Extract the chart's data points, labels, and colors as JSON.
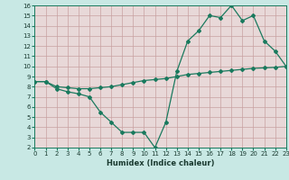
{
  "line1_x": [
    0,
    1,
    2,
    3,
    4,
    5,
    6,
    7,
    8,
    9,
    10,
    11,
    12,
    13,
    14,
    15,
    16,
    17,
    18,
    19,
    20,
    21,
    22,
    23
  ],
  "line1_y": [
    8.5,
    8.5,
    7.8,
    7.5,
    7.3,
    7.0,
    5.5,
    4.5,
    3.5,
    3.5,
    3.5,
    2.0,
    4.5,
    9.5,
    12.5,
    13.5,
    15.0,
    14.8,
    16.0,
    14.5,
    15.0,
    12.5,
    11.5,
    10.0
  ],
  "line2_x": [
    0,
    1,
    2,
    3,
    4,
    5,
    6,
    7,
    8,
    9,
    10,
    11,
    12,
    13,
    14,
    15,
    16,
    17,
    18,
    19,
    20,
    21,
    22,
    23
  ],
  "line2_y": [
    8.5,
    8.5,
    8.0,
    7.9,
    7.8,
    7.8,
    7.9,
    8.0,
    8.2,
    8.4,
    8.6,
    8.7,
    8.8,
    9.0,
    9.2,
    9.3,
    9.4,
    9.5,
    9.6,
    9.7,
    9.8,
    9.85,
    9.9,
    10.0
  ],
  "line_color": "#1a7a5e",
  "bg_color": "#e8d8d8",
  "outer_bg": "#c8e8e4",
  "grid_color": "#c8a0a0",
  "xlabel": "Humidex (Indice chaleur)",
  "xlim": [
    0,
    23
  ],
  "ylim": [
    2,
    16
  ],
  "yticks": [
    2,
    3,
    4,
    5,
    6,
    7,
    8,
    9,
    10,
    11,
    12,
    13,
    14,
    15,
    16
  ],
  "xticks": [
    0,
    1,
    2,
    3,
    4,
    5,
    6,
    7,
    8,
    9,
    10,
    11,
    12,
    13,
    14,
    15,
    16,
    17,
    18,
    19,
    20,
    21,
    22,
    23
  ],
  "marker": "D",
  "marker_size": 2,
  "linewidth": 0.9,
  "tick_fontsize": 5,
  "xlabel_fontsize": 6
}
